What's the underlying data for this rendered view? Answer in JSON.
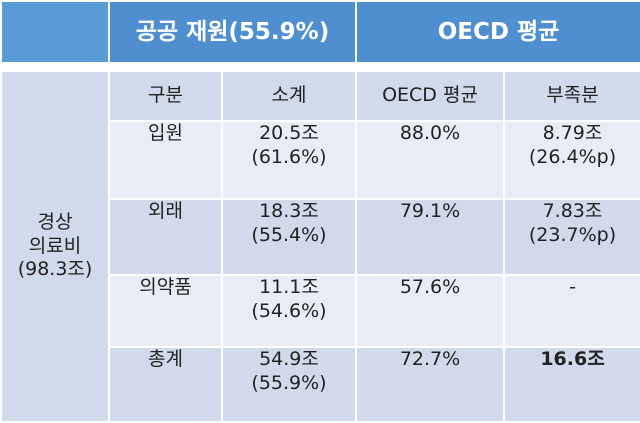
{
  "header": {
    "public_funding": "공공 재원(55.9%)",
    "oecd_average": "OECD 평균"
  },
  "side_label": "경상\n의료비\n(98.3조)",
  "columns": {
    "category": "구분",
    "subtotal": "소계",
    "oecd_average": "OECD 평균",
    "shortfall": "부족분"
  },
  "rows": [
    {
      "category": "입원",
      "subtotal": "20.5조",
      "subtotal_pct": "(61.6%)",
      "oecd": "88.0%",
      "shortfall": "8.79조",
      "shortfall_pct": "(26.4%p)"
    },
    {
      "category": "외래",
      "subtotal": "18.3조",
      "subtotal_pct": "(55.4%)",
      "oecd": "79.1%",
      "shortfall": "7.83조",
      "shortfall_pct": "(23.7%p)"
    },
    {
      "category": "의약품",
      "subtotal": "11.1조",
      "subtotal_pct": "(54.6%)",
      "oecd": "57.6%",
      "shortfall": "-",
      "shortfall_pct": ""
    },
    {
      "category": "총계",
      "subtotal": "54.9조",
      "subtotal_pct": "(55.9%)",
      "oecd": "72.7%",
      "shortfall": "16.6조",
      "shortfall_pct": ""
    }
  ]
}
